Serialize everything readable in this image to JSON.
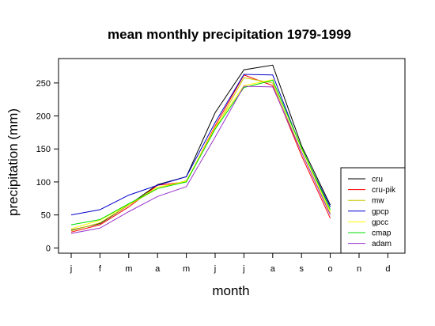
{
  "chart_data": {
    "type": "line",
    "title": "mean monthly precipitation 1979-1999",
    "xlabel": "month",
    "ylabel": "precipitation (mm)",
    "categories": [
      "j",
      "f",
      "m",
      "a",
      "m",
      "j",
      "j",
      "a",
      "s",
      "o",
      "n",
      "d"
    ],
    "y_ticks": [
      0,
      50,
      100,
      150,
      200,
      250
    ],
    "ylim": [
      -8,
      287
    ],
    "legend_position": "bottom-right",
    "grid": false,
    "series": [
      {
        "name": "cru",
        "color": "#000000",
        "values": [
          27,
          37,
          65,
          96,
          108,
          205,
          270,
          277,
          155,
          65,
          null,
          null
        ]
      },
      {
        "name": "cru-pik",
        "color": "#ff0000",
        "values": [
          24,
          35,
          62,
          95,
          100,
          185,
          262,
          246,
          140,
          45,
          null,
          null
        ]
      },
      {
        "name": "mw",
        "color": "#c8c800",
        "values": [
          26,
          38,
          65,
          90,
          102,
          180,
          258,
          250,
          145,
          52,
          null,
          null
        ]
      },
      {
        "name": "gpcp",
        "color": "#0000cc",
        "values": [
          50,
          58,
          80,
          95,
          108,
          190,
          263,
          262,
          150,
          62,
          null,
          null
        ]
      },
      {
        "name": "gpcc",
        "color": "#ffff00",
        "values": [
          29,
          42,
          66,
          92,
          101,
          183,
          246,
          255,
          150,
          55,
          null,
          null
        ]
      },
      {
        "name": "cmap",
        "color": "#00dd00",
        "values": [
          35,
          43,
          67,
          90,
          100,
          180,
          243,
          254,
          152,
          58,
          null,
          null
        ]
      },
      {
        "name": "adam",
        "color": "#9933cc",
        "values": [
          22,
          30,
          55,
          78,
          93,
          168,
          245,
          244,
          145,
          50,
          null,
          null
        ]
      }
    ]
  }
}
